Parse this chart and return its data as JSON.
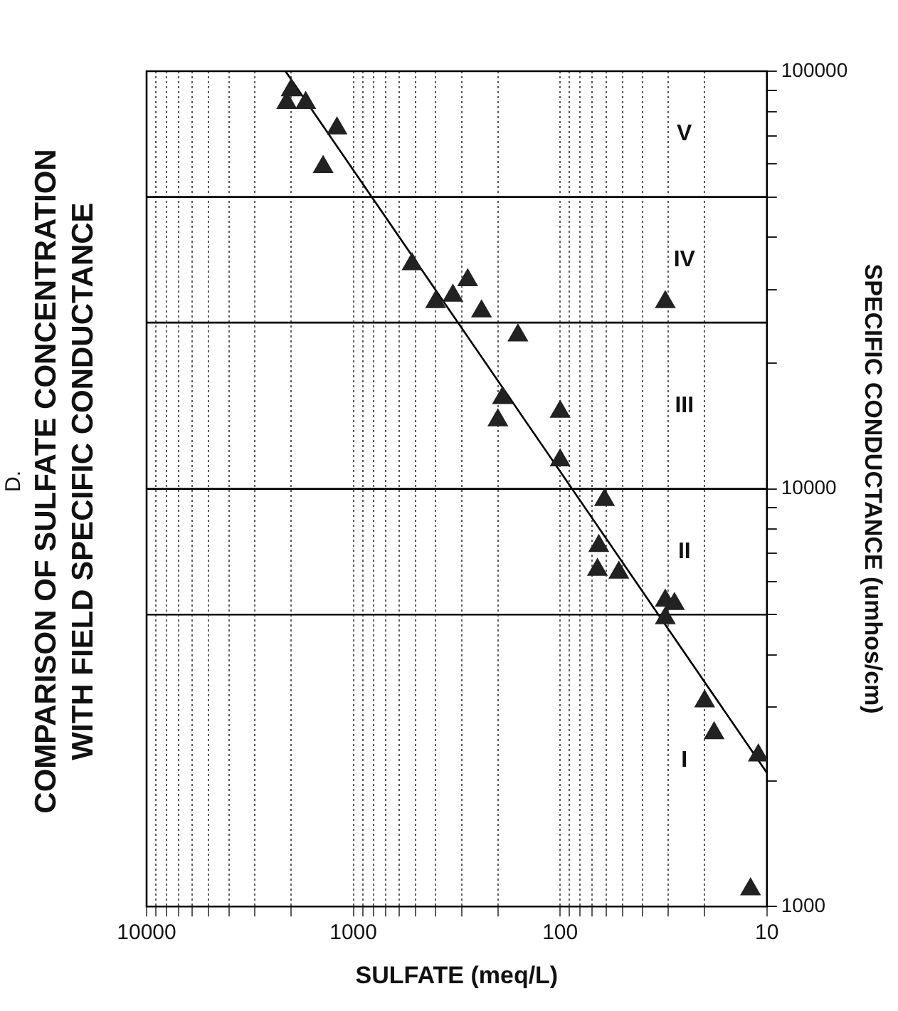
{
  "chart_data": {
    "type": "scatter",
    "title": "COMPARISON OF SULFATE CONCENTRATION WITH FIELD SPECIFIC CONDUCTANCE",
    "xlabel": "SULFATE (meq/L)",
    "ylabel": "SPECIFIC CONDUCTANCE (umhos/cm)",
    "annotations": [
      "D.",
      "I",
      "II",
      "III",
      "IV",
      "V"
    ],
    "log": "xy",
    "grid": "x",
    "marker": "triangle",
    "xlim": [
      10000,
      10
    ],
    "ylim": [
      1000,
      100000
    ],
    "xticks": [
      10,
      {
        "value": 20,
        "label": null
      },
      {
        "value": 30,
        "label": null
      },
      {
        "value": 40,
        "label": null
      },
      {
        "value": 50,
        "label": null
      },
      {
        "value": 60,
        "label": null
      },
      {
        "value": 70,
        "label": null
      },
      {
        "value": 80,
        "label": null
      },
      {
        "value": 90,
        "label": null
      },
      100,
      {
        "value": 200,
        "label": null
      },
      {
        "value": 300,
        "label": null
      },
      {
        "value": 400,
        "label": null
      },
      {
        "value": 500,
        "label": null
      },
      {
        "value": 600,
        "label": null
      },
      {
        "value": 700,
        "label": null
      },
      {
        "value": 800,
        "label": null
      },
      {
        "value": 900,
        "label": null
      },
      1000,
      {
        "value": 2000,
        "label": null
      },
      {
        "value": 3000,
        "label": null
      },
      {
        "value": 4000,
        "label": null
      },
      {
        "value": 5000,
        "label": null
      },
      {
        "value": 6000,
        "label": null
      },
      {
        "value": 7000,
        "label": null
      },
      {
        "value": 8000,
        "label": null
      },
      {
        "value": 9000,
        "label": null
      },
      10000
    ],
    "yticks": [
      1000,
      {
        "value": 2000,
        "label": null
      },
      {
        "value": 3000,
        "label": null
      },
      {
        "value": 4000,
        "label": null
      },
      {
        "value": 5000,
        "label": null
      },
      {
        "value": 6000,
        "label": null
      },
      {
        "value": 7000,
        "label": null
      },
      {
        "value": 8000,
        "label": null
      },
      {
        "value": 9000,
        "label": null
      },
      10000,
      {
        "value": 20000,
        "label": null
      },
      {
        "value": 30000,
        "label": null
      },
      {
        "value": 40000,
        "label": null
      },
      {
        "value": 50000,
        "label": null
      },
      {
        "value": 60000,
        "label": null
      },
      {
        "value": 70000,
        "label": null
      },
      {
        "value": 80000,
        "label": null
      },
      {
        "value": 90000,
        "label": null
      },
      100000
    ],
    "ref_lines": [
      {
        "axis": "y",
        "value": 5000,
        "color": "#000000"
      },
      {
        "axis": "y",
        "value": 10000,
        "color": "#000000"
      },
      {
        "axis": "y",
        "value": 25000,
        "color": "#000000"
      },
      {
        "axis": "y",
        "value": 50000,
        "color": "#000000"
      }
    ],
    "series": [
      {
        "type": "scatter",
        "color": "#222222",
        "x": [
          2000,
          2100,
          1700,
          1200,
          1400,
          520,
          400,
          330,
          280,
          240,
          160,
          31,
          190,
          200,
          100,
          100,
          61,
          65,
          66,
          52,
          31,
          28,
          31,
          20,
          18,
          11,
          12
        ],
        "values": [
          90000,
          84000,
          84000,
          73000,
          59000,
          34500,
          28000,
          29000,
          31600,
          26600,
          23300,
          28000,
          16500,
          14600,
          15300,
          11700,
          9400,
          7300,
          6400,
          6300,
          5400,
          5300,
          4900,
          3100,
          2600,
          2300,
          1100
        ]
      },
      {
        "type": "line",
        "color": "#000000",
        "marker": "none",
        "x": [
          10,
          2130
        ],
        "values": [
          2090,
          100000
        ]
      }
    ]
  }
}
